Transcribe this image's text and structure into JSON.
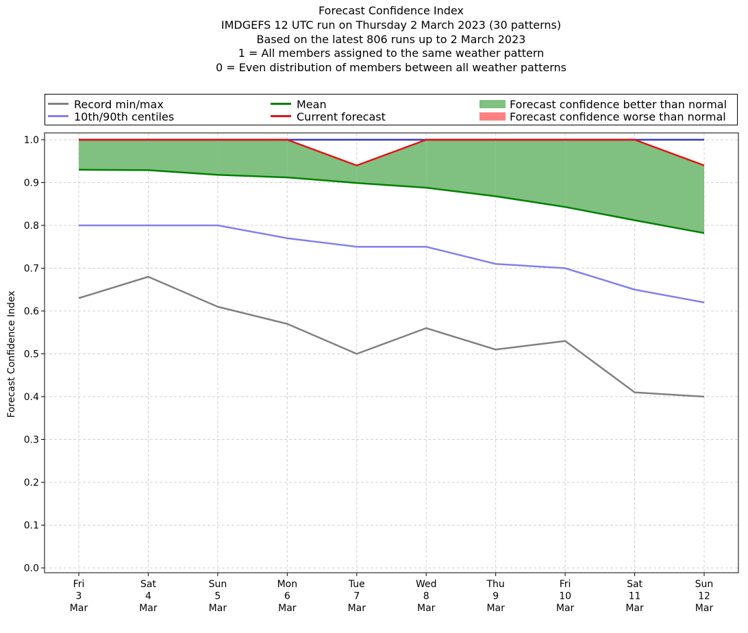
{
  "chart_data": {
    "type": "line",
    "title_lines": [
      "Forecast Confidence Index",
      "IMDGEFS 12 UTC run on Thursday 2 March 2023 (30 patterns)",
      "Based on the latest 806 runs up to 2 March 2023",
      "1 = All members assigned to the same weather pattern",
      "0 = Even distribution of members between all weather patterns"
    ],
    "ylabel": "Forecast Confidence Index",
    "ylim": [
      0.0,
      1.0
    ],
    "yticks": [
      "0.0",
      "0.1",
      "0.2",
      "0.3",
      "0.4",
      "0.5",
      "0.6",
      "0.7",
      "0.8",
      "0.9",
      "1.0"
    ],
    "grid": true,
    "legend_placement": "top",
    "categories": [
      {
        "day": "Fri",
        "date": "3",
        "month": "Mar"
      },
      {
        "day": "Sat",
        "date": "4",
        "month": "Mar"
      },
      {
        "day": "Sun",
        "date": "5",
        "month": "Mar"
      },
      {
        "day": "Mon",
        "date": "6",
        "month": "Mar"
      },
      {
        "day": "Tue",
        "date": "7",
        "month": "Mar"
      },
      {
        "day": "Wed",
        "date": "8",
        "month": "Mar"
      },
      {
        "day": "Thu",
        "date": "9",
        "month": "Mar"
      },
      {
        "day": "Fri",
        "date": "10",
        "month": "Mar"
      },
      {
        "day": "Sat",
        "date": "11",
        "month": "Mar"
      },
      {
        "day": "Sun",
        "date": "12",
        "month": "Mar"
      }
    ],
    "series": [
      {
        "name": "Record min/max",
        "role": "record_min",
        "color": "#808080",
        "values": [
          0.63,
          0.68,
          0.61,
          0.57,
          0.5,
          0.56,
          0.51,
          0.53,
          0.41,
          0.4
        ]
      },
      {
        "role": "record_max",
        "color": "#808080",
        "values": [
          1.0,
          1.0,
          1.0,
          1.0,
          1.0,
          1.0,
          1.0,
          1.0,
          1.0,
          1.0
        ]
      },
      {
        "name": "10th/90th centiles",
        "role": "p10",
        "color": "#8080f0",
        "values": [
          0.8,
          0.8,
          0.8,
          0.77,
          0.75,
          0.75,
          0.71,
          0.7,
          0.65,
          0.62
        ]
      },
      {
        "role": "p90",
        "color": "#4040c0",
        "values": [
          1.0,
          1.0,
          1.0,
          1.0,
          1.0,
          1.0,
          1.0,
          1.0,
          1.0,
          1.0
        ]
      },
      {
        "name": "Mean",
        "role": "mean",
        "color": "#008000",
        "values": [
          0.93,
          0.929,
          0.918,
          0.912,
          0.899,
          0.888,
          0.868,
          0.843,
          0.812,
          0.782
        ]
      },
      {
        "name": "Current forecast",
        "role": "current",
        "color": "#e81010",
        "values": [
          1.0,
          1.0,
          1.0,
          1.0,
          0.94,
          1.0,
          1.0,
          1.0,
          1.0,
          0.94
        ]
      }
    ],
    "fills": [
      {
        "name": "Forecast confidence better than normal",
        "color": "#80c080"
      },
      {
        "name": "Forecast confidence worse than normal",
        "color": "#ff8080"
      }
    ]
  }
}
